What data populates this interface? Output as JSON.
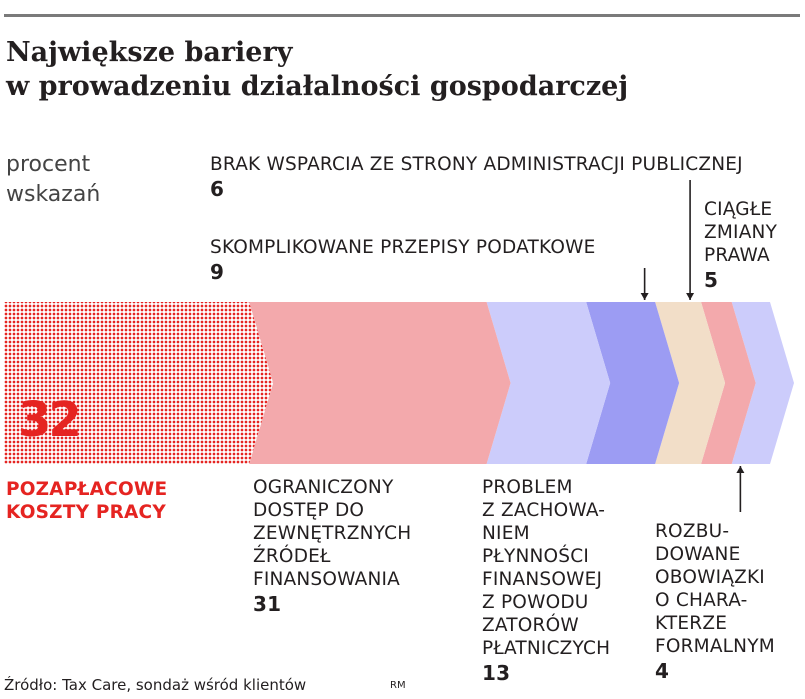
{
  "title_lines": [
    "Największe bariery",
    "w prowadzeniu działalności gospodarczej"
  ],
  "unit_lines": [
    "procent",
    "wskazań"
  ],
  "chart_data": {
    "type": "bar",
    "title": "Największe bariery w prowadzeniu działalności gospodarczej",
    "ylabel": "procent wskazań",
    "categories": [
      "POZAPŁACOWE KOSZTY PRACY",
      "OGRANICZONY DOSTĘP DO ZEWNĘTRZNYCH ŹRÓDEŁ FINANSOWANIA",
      "PROBLEM Z ZACHOWANIEM PŁYNNOŚCI FINANSOWEJ Z POWODU ZATORÓW PŁATNICZYCH",
      "SKOMPLIKOWANE PRZEPISY PODATKOWE",
      "BRAK WSPARCIA ZE STRONY ADMINISTRACJI PUBLICZNEJ",
      "ROZBUDOWANE OBOWIĄZKI O CHARAKTERZE FORMALNYM",
      "CIĄGŁE ZMIANY PRAWA"
    ],
    "values": [
      32,
      31,
      13,
      9,
      6,
      4,
      5
    ],
    "colors": [
      "#e52421",
      "#f3a9ac",
      "#ccccfb",
      "#9c9cf3",
      "#f2dec8",
      "#f3a9ac",
      "#ccccfb"
    ]
  },
  "labels": {
    "koszty": {
      "lines": [
        "POZAPŁACOWE",
        "KOSZTY PRACY"
      ],
      "value": "32"
    },
    "dostep": {
      "lines": [
        "OGRANICZONY",
        "DOSTĘP DO",
        "ZEWNĘTRZNYCH",
        "ŹRÓDEŁ",
        "FINANSOWANIA"
      ],
      "value": "31"
    },
    "plynnosc": {
      "lines": [
        "PROBLEM",
        "Z ZACHOWA-",
        "NIEM",
        "PŁYNNOŚCI",
        "FINANSOWEJ",
        "Z POWODU",
        "ZATORÓW",
        "PŁATNICZYCH"
      ],
      "value": "13"
    },
    "podatki": {
      "lines": [
        "SKOMPLIKOWANE PRZEPISY PODATKOWE"
      ],
      "value": "9"
    },
    "admin": {
      "lines": [
        "BRAK WSPARCIA ZE STRONY ADMINISTRACJI PUBLICZNEJ"
      ],
      "value": "6"
    },
    "formalne": {
      "lines": [
        "ROZBU-",
        "DOWANE",
        "OBOWIĄZKI",
        "O CHARA-",
        "KTERZE",
        "FORMALNYM"
      ],
      "value": "4"
    },
    "prawo": {
      "lines": [
        "CIĄGŁE",
        "ZMIANY",
        "PRAWA"
      ],
      "value": "5"
    }
  },
  "source": "Źródło: Tax Care, sondaż wśród klientów",
  "author": "RM"
}
